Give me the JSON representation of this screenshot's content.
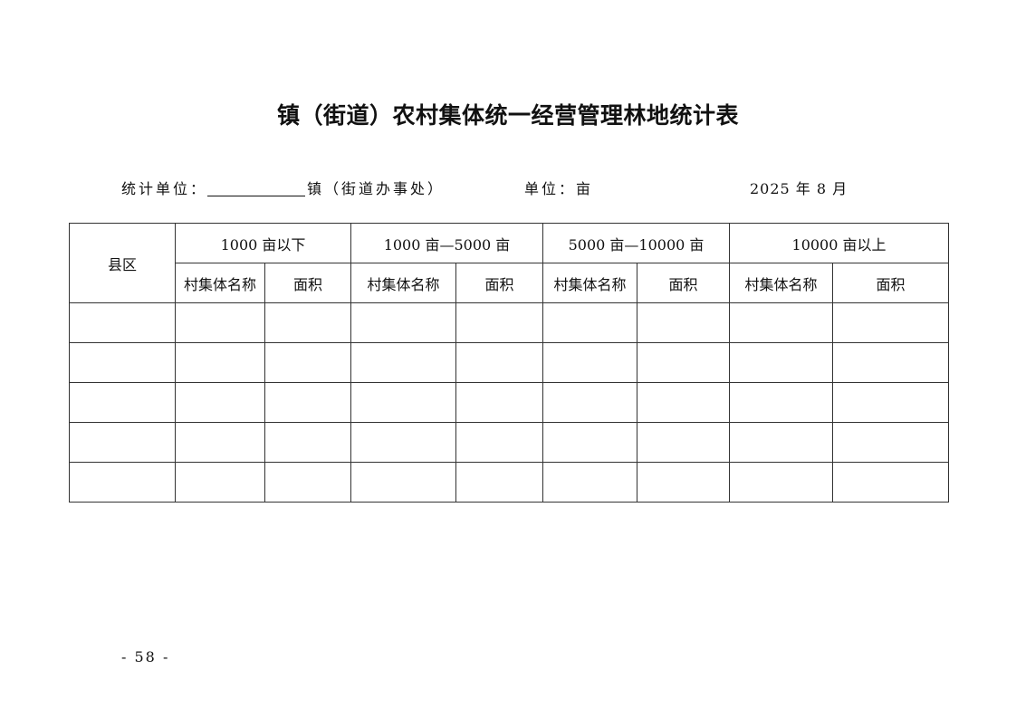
{
  "title": "镇（街道）农村集体统一经营管理林地统计表",
  "meta": {
    "unit_label": "统计单位：",
    "unit_suffix": "镇（街道办事处）",
    "measure": "单位：亩",
    "date": "2025 年 8 月"
  },
  "table": {
    "county_header": "县区",
    "groups": [
      "1000 亩以下",
      "1000 亩—5000 亩",
      "5000 亩—10000 亩",
      "10000 亩以上"
    ],
    "sub_name": "村集体名称",
    "sub_area": "面积",
    "rows": [
      [
        "",
        "",
        "",
        "",
        "",
        "",
        "",
        "",
        ""
      ],
      [
        "",
        "",
        "",
        "",
        "",
        "",
        "",
        "",
        ""
      ],
      [
        "",
        "",
        "",
        "",
        "",
        "",
        "",
        "",
        ""
      ],
      [
        "",
        "",
        "",
        "",
        "",
        "",
        "",
        "",
        ""
      ],
      [
        "",
        "",
        "",
        "",
        "",
        "",
        "",
        "",
        ""
      ]
    ]
  },
  "footer": {
    "page": "- 58 -"
  }
}
